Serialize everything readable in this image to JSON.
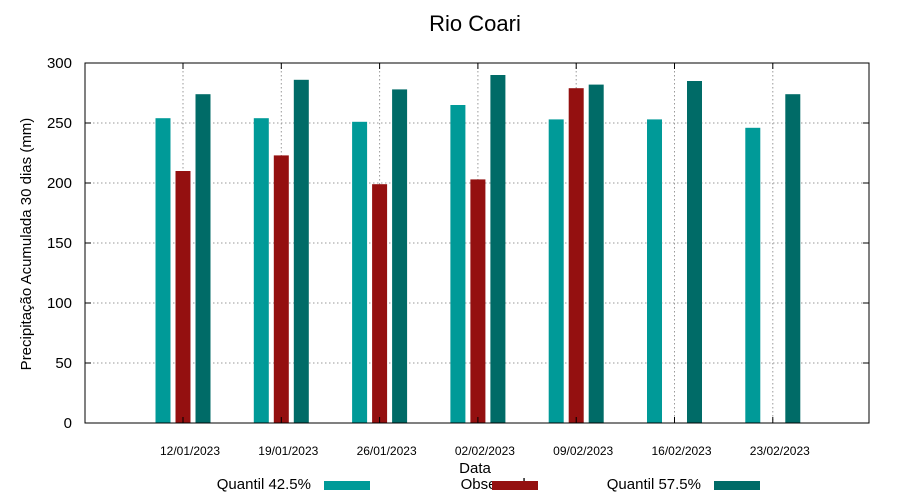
{
  "chart_data": {
    "type": "bar",
    "title": "Rio Coari",
    "xlabel": "Data",
    "ylabel": "Precipitação Acumulada 30 dias (mm)",
    "ylim": [
      0,
      300
    ],
    "yticks": [
      0,
      50,
      100,
      150,
      200,
      250,
      300
    ],
    "grid": true,
    "legend_position": "bottom",
    "categories": [
      "12/01/2023",
      "19/01/2023",
      "26/01/2023",
      "02/02/2023",
      "09/02/2023",
      "16/02/2023",
      "23/02/2023"
    ],
    "series": [
      {
        "name": "Quantil 42.5%",
        "color": "#009a98",
        "values": [
          254,
          254,
          251,
          265,
          253,
          253,
          246
        ]
      },
      {
        "name": "Observado",
        "color": "#941010",
        "values": [
          210,
          223,
          199,
          203,
          279,
          null,
          null
        ]
      },
      {
        "name": "Quantil 57.5%",
        "color": "#006b67",
        "values": [
          274,
          286,
          278,
          290,
          282,
          285,
          274
        ]
      }
    ]
  }
}
